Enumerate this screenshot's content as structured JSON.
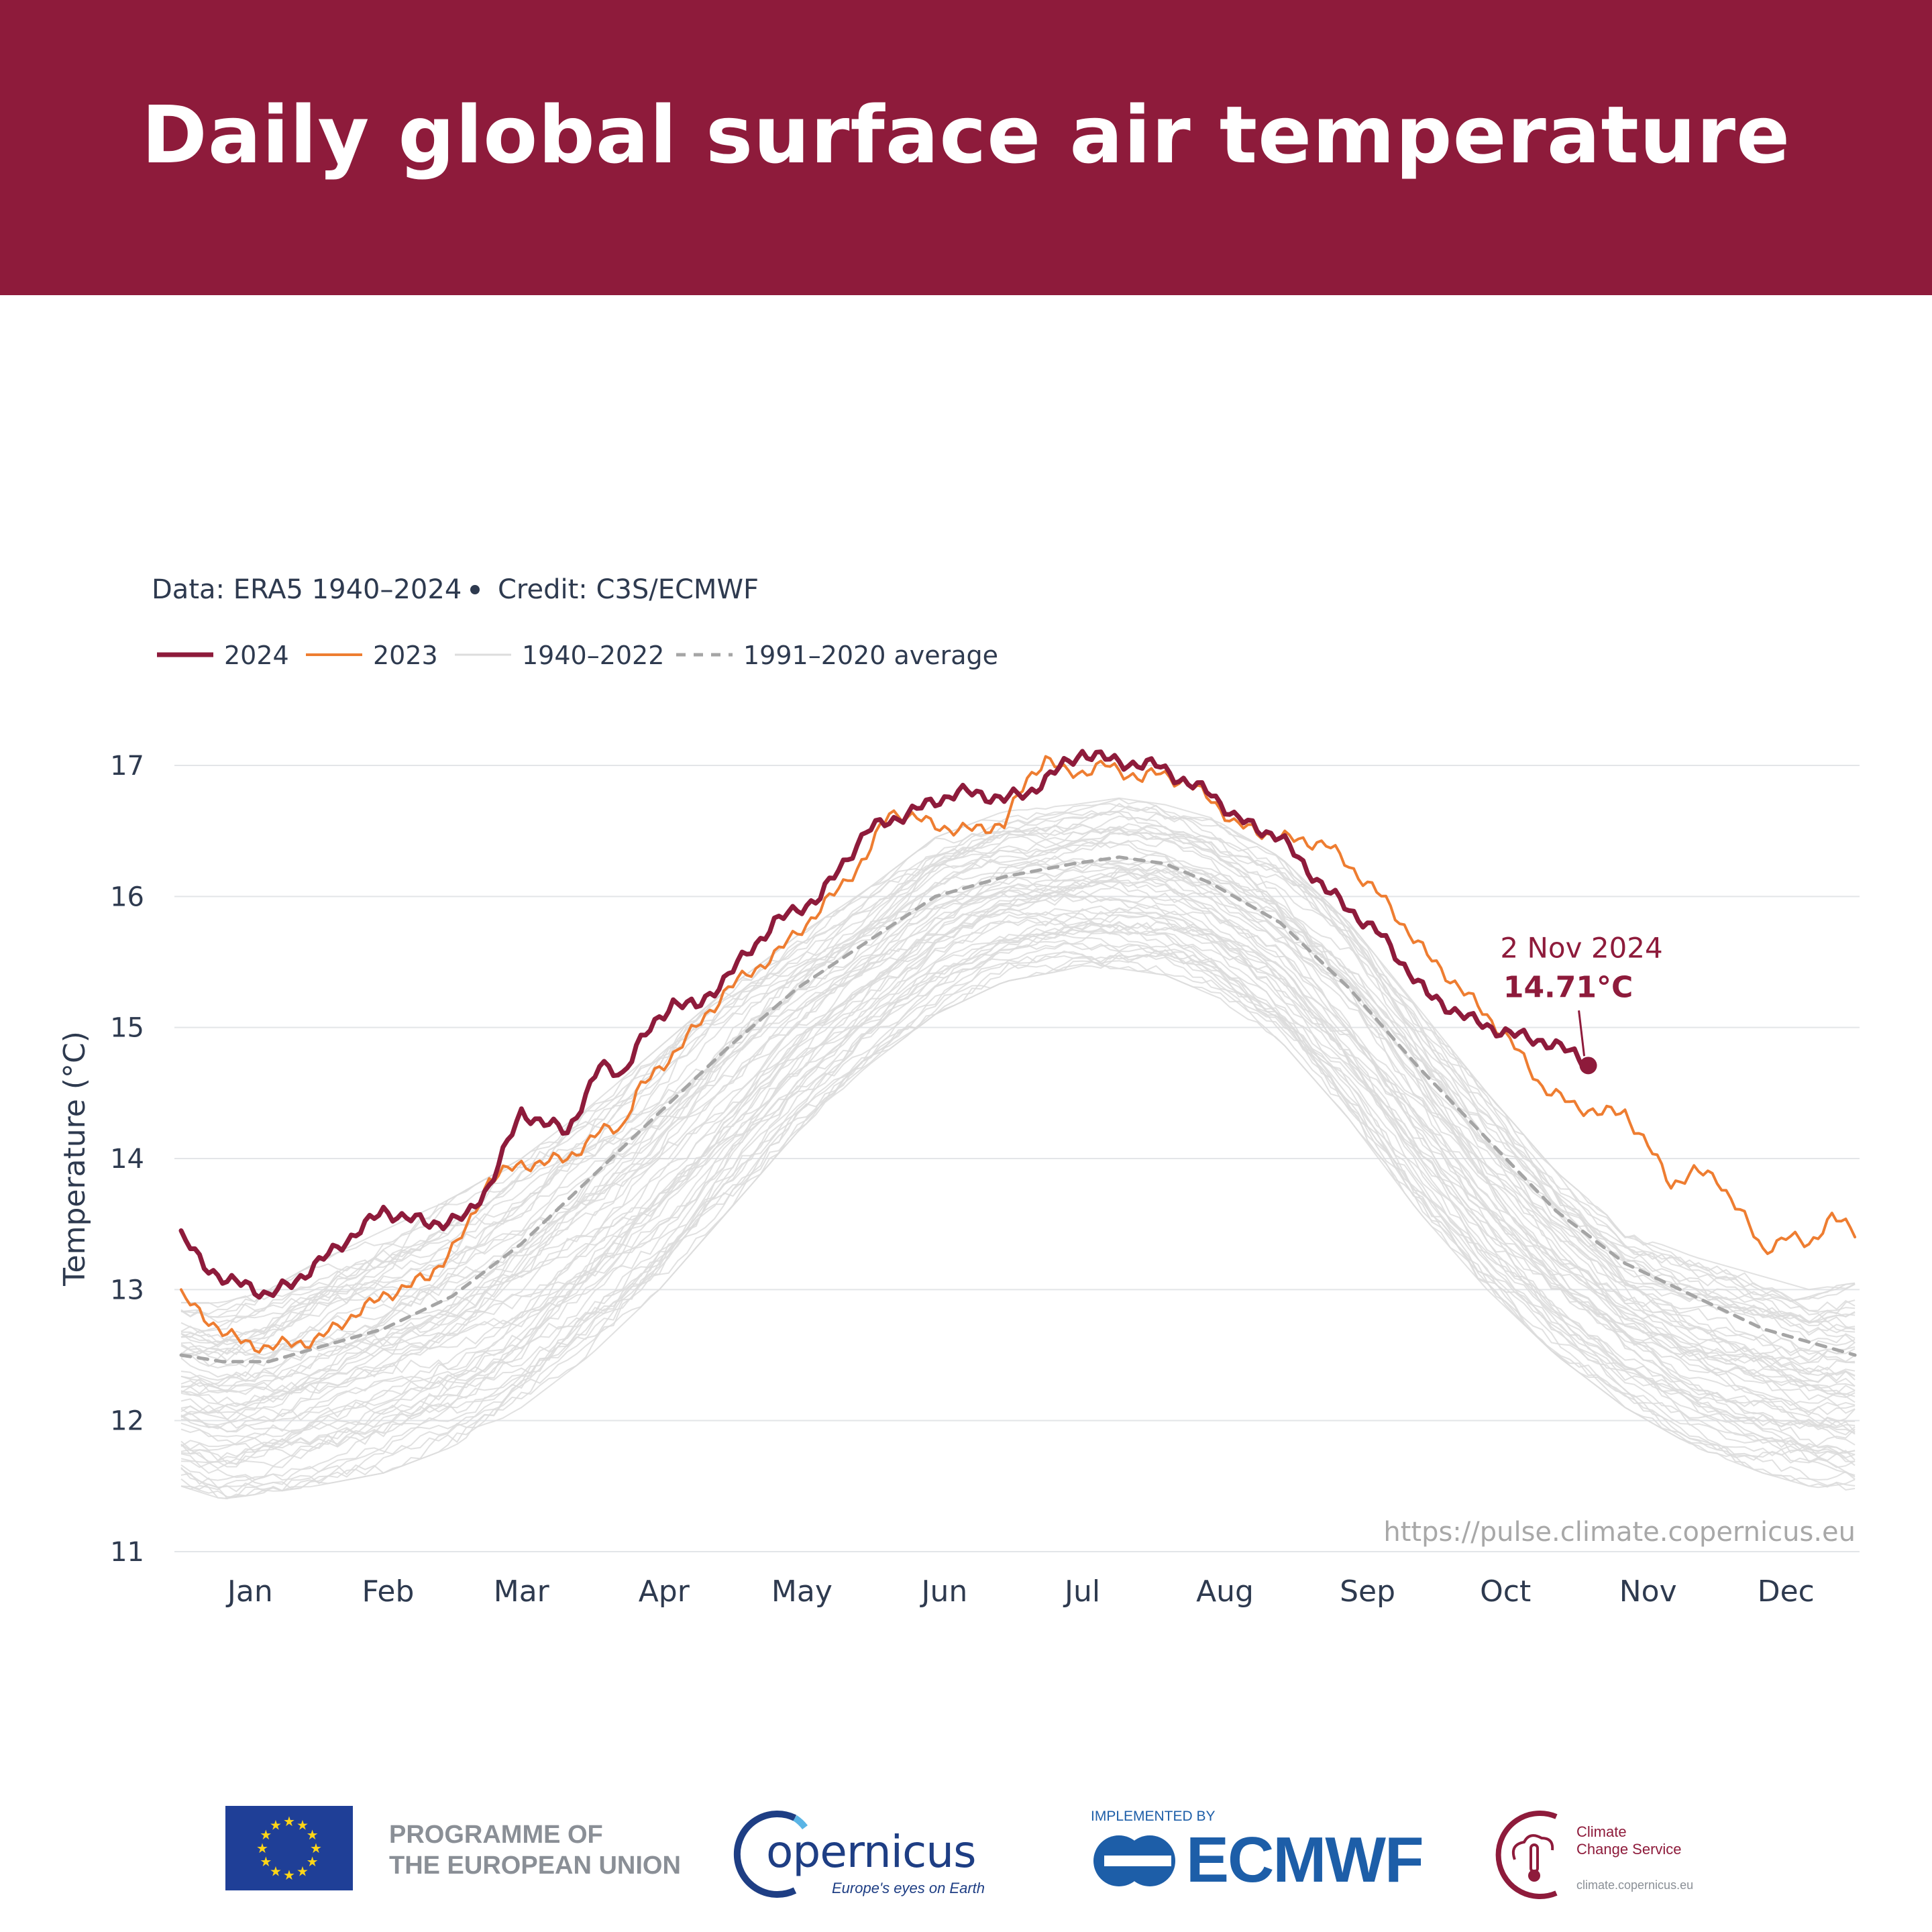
{
  "header": {
    "title": "Daily global surface air temperature"
  },
  "chart_data": {
    "type": "line",
    "title": "Daily global surface air temperature",
    "source_note": "Data: ERA5 1940–2024",
    "credit_note": "Credit: C3S/ECMWF",
    "ylabel": "Temperature (°C)",
    "xlabel": "",
    "ylim": [
      11,
      17.3
    ],
    "yticks": [
      11,
      12,
      13,
      14,
      15,
      16,
      17
    ],
    "month_labels": [
      "Jan",
      "Feb",
      "Mar",
      "Apr",
      "May",
      "Jun",
      "Jul",
      "Aug",
      "Sep",
      "Oct",
      "Nov",
      "Dec"
    ],
    "grid": true,
    "legend_position": "top-left",
    "colors": {
      "y2024": "#8e1b3b",
      "y2023": "#ee7d31",
      "historical": "#dcdcdc",
      "average": "#a5a5a5",
      "text": "#2e3a4f"
    },
    "series": [
      {
        "name": "2024",
        "style": "thick-maroon",
        "day": [
          1,
          6,
          11,
          15,
          20,
          25,
          29,
          36,
          45,
          55,
          63,
          68,
          75,
          85,
          92,
          97,
          100,
          108,
          113,
          120,
          130,
          140,
          150,
          160,
          170,
          180,
          185,
          189,
          193,
          197,
          202,
          210,
          214,
          220,
          225,
          230,
          240,
          250,
          262,
          272,
          282,
          290,
          297,
          304,
          307
        ],
        "values": [
          13.4,
          13.2,
          13.05,
          13.05,
          12.95,
          13.05,
          13.15,
          13.35,
          13.6,
          13.5,
          13.55,
          13.8,
          14.35,
          14.2,
          14.7,
          14.65,
          14.85,
          15.2,
          15.15,
          15.4,
          15.8,
          16.0,
          16.5,
          16.65,
          16.8,
          16.75,
          16.78,
          16.9,
          17.0,
          17.1,
          17.05,
          17.0,
          17.0,
          16.85,
          16.8,
          16.6,
          16.45,
          16.05,
          15.7,
          15.25,
          15.05,
          14.95,
          14.9,
          14.8,
          14.71
        ]
      },
      {
        "name": "2023",
        "style": "orange",
        "day": [
          1,
          6,
          11,
          15,
          20,
          25,
          30,
          36,
          45,
          55,
          63,
          68,
          75,
          85,
          92,
          97,
          100,
          108,
          113,
          120,
          130,
          140,
          150,
          155,
          160,
          170,
          180,
          185,
          189,
          193,
          197,
          202,
          210,
          214,
          220,
          225,
          230,
          240,
          250,
          262,
          272,
          282,
          290,
          297,
          304,
          310,
          315,
          320,
          325,
          330,
          335,
          340,
          345,
          350,
          355,
          360,
          365
        ],
        "values": [
          12.95,
          12.8,
          12.65,
          12.6,
          12.55,
          12.6,
          12.6,
          12.75,
          12.95,
          13.1,
          13.45,
          13.85,
          13.95,
          14.0,
          14.2,
          14.25,
          14.5,
          14.8,
          15.0,
          15.3,
          15.55,
          15.9,
          16.3,
          16.65,
          16.6,
          16.5,
          16.55,
          16.9,
          17.05,
          16.95,
          16.95,
          17.0,
          16.9,
          16.95,
          16.85,
          16.75,
          16.55,
          16.45,
          16.4,
          16.0,
          15.55,
          15.2,
          14.9,
          14.55,
          14.4,
          14.35,
          14.35,
          14.1,
          13.8,
          13.9,
          13.85,
          13.6,
          13.3,
          13.4,
          13.35,
          13.55,
          13.45
        ]
      },
      {
        "name": "1991–2020 average",
        "style": "dashed-grey",
        "day": [
          1,
          10,
          20,
          30,
          45,
          60,
          75,
          90,
          105,
          120,
          135,
          150,
          165,
          180,
          195,
          205,
          215,
          225,
          240,
          255,
          270,
          285,
          300,
          315,
          330,
          345,
          355,
          365
        ],
        "values": [
          12.5,
          12.45,
          12.45,
          12.55,
          12.7,
          12.95,
          13.35,
          13.85,
          14.35,
          14.85,
          15.3,
          15.65,
          16.0,
          16.15,
          16.25,
          16.3,
          16.25,
          16.1,
          15.8,
          15.3,
          14.7,
          14.15,
          13.6,
          13.2,
          12.95,
          12.7,
          12.6,
          12.5
        ]
      }
    ],
    "historical_envelope": {
      "name": "1940–2022",
      "style": "thin-light-grey",
      "day": [
        1,
        10,
        20,
        30,
        45,
        60,
        75,
        90,
        105,
        120,
        135,
        150,
        165,
        180,
        195,
        205,
        215,
        225,
        240,
        255,
        270,
        285,
        300,
        315,
        330,
        345,
        355,
        365
      ],
      "low": [
        11.5,
        11.4,
        11.45,
        11.5,
        11.6,
        11.8,
        12.1,
        12.5,
        13.0,
        13.6,
        14.2,
        14.7,
        15.1,
        15.35,
        15.45,
        15.45,
        15.4,
        15.25,
        14.9,
        14.3,
        13.6,
        13.0,
        12.5,
        12.1,
        11.8,
        11.6,
        11.5,
        11.45
      ],
      "high": [
        12.9,
        12.9,
        13.0,
        13.2,
        13.45,
        13.7,
        14.0,
        14.4,
        14.85,
        15.3,
        15.7,
        16.05,
        16.45,
        16.65,
        16.7,
        16.75,
        16.7,
        16.6,
        16.3,
        15.8,
        15.15,
        14.5,
        13.9,
        13.45,
        13.25,
        13.1,
        13.0,
        13.05
      ]
    },
    "legend": [
      {
        "label": "2024",
        "style": "thick-maroon"
      },
      {
        "label": "2023",
        "style": "orange"
      },
      {
        "label": "1940–2022",
        "style": "thin-light-grey"
      },
      {
        "label": "1991–2020 average",
        "style": "dashed-grey"
      }
    ],
    "annotation": {
      "date": "2 Nov 2024",
      "value": 14.71,
      "value_label": "14.71°C",
      "day": 307
    },
    "url": "https://pulse.climate.copernicus.eu"
  },
  "footer": {
    "eu_text": "PROGRAMME OF\nTHE EUROPEAN UNION",
    "copernicus_word": "opernicus",
    "copernicus_tagline": "Europe's eyes on Earth",
    "implemented_by": "IMPLEMENTED BY",
    "ecmwf": "ECMWF",
    "c3s_text": "Climate\nChange Service",
    "c3s_url": "climate.copernicus.eu"
  }
}
